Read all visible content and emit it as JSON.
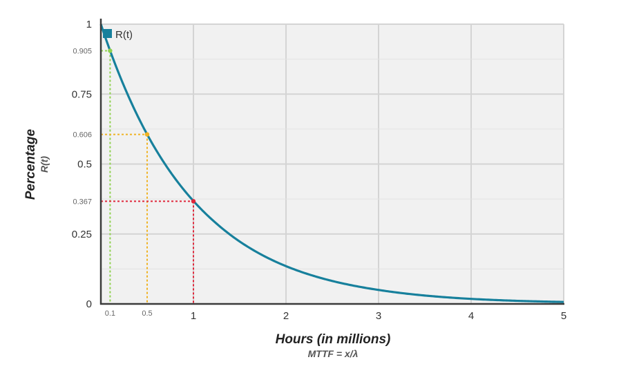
{
  "chart_data": {
    "type": "line",
    "xlabel": "Hours (in millions)",
    "xlabel_sub": "MTTF = x/λ",
    "ylabel": "Percentage",
    "ylabel_sub": "R(t)",
    "xlim": [
      0,
      5
    ],
    "ylim": [
      0,
      1
    ],
    "grid": true,
    "legend_position": "top-left",
    "x_ticks": [
      {
        "value": 1,
        "label": "1"
      },
      {
        "value": 2,
        "label": "2"
      },
      {
        "value": 3,
        "label": "3"
      },
      {
        "value": 4,
        "label": "4"
      },
      {
        "value": 5,
        "label": "5"
      }
    ],
    "x_ticks_minor": [
      {
        "value": 0.1,
        "label": "0.1"
      },
      {
        "value": 0.5,
        "label": "0.5"
      }
    ],
    "y_ticks": [
      {
        "value": 0,
        "label": "0"
      },
      {
        "value": 0.25,
        "label": "0.25"
      },
      {
        "value": 0.5,
        "label": "0.5"
      },
      {
        "value": 0.75,
        "label": "0.75"
      },
      {
        "value": 1,
        "label": "1"
      }
    ],
    "y_ticks_minor": [
      {
        "value": 0.905,
        "label": "0.905"
      },
      {
        "value": 0.606,
        "label": "0.606"
      },
      {
        "value": 0.367,
        "label": "0.367"
      }
    ],
    "series": [
      {
        "name": "R(t)",
        "color": "#17809c",
        "x": [
          0,
          0.1,
          0.25,
          0.5,
          0.75,
          1,
          1.25,
          1.5,
          2,
          2.5,
          3,
          3.5,
          4,
          4.5,
          5
        ],
        "y": [
          1,
          0.905,
          0.779,
          0.606,
          0.472,
          0.368,
          0.287,
          0.223,
          0.135,
          0.082,
          0.05,
          0.03,
          0.018,
          0.011,
          0.007
        ]
      }
    ],
    "annotations": [
      {
        "x": 0.1,
        "y": 0.905,
        "color": "#8fd14f"
      },
      {
        "x": 0.5,
        "y": 0.606,
        "color": "#f0b323"
      },
      {
        "x": 1,
        "y": 0.367,
        "color": "#e0263a"
      }
    ]
  }
}
